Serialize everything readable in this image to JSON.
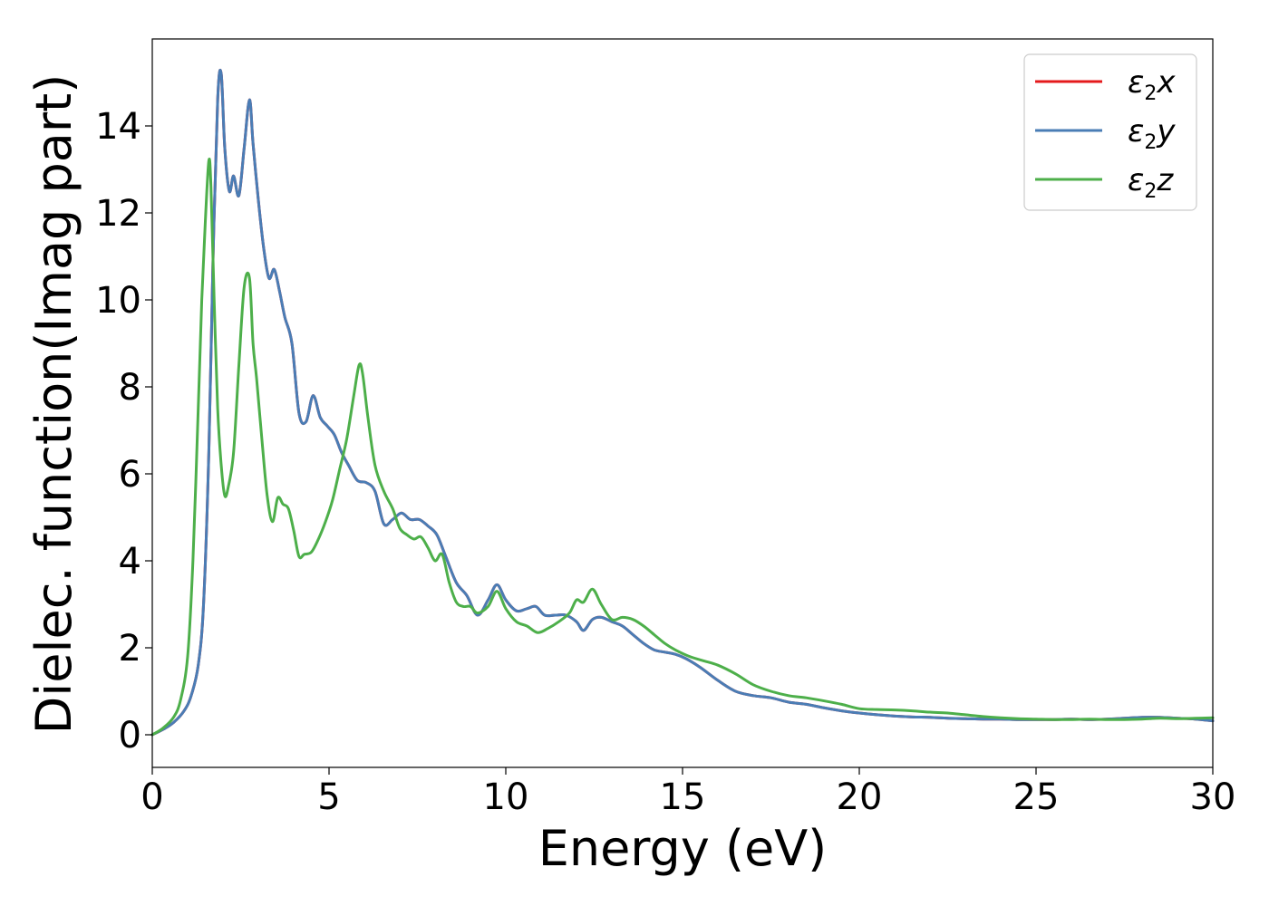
{
  "chart_data": {
    "type": "line",
    "xlabel": "Energy (eV)",
    "ylabel": "Dielec. function(Imag part)",
    "xlim": [
      0,
      30
    ],
    "ylim": [
      -0.75,
      16
    ],
    "xticks": [
      0,
      5,
      10,
      15,
      20,
      25,
      30
    ],
    "yticks": [
      0,
      2,
      4,
      6,
      8,
      10,
      12,
      14
    ],
    "grid": false,
    "legend_position": "top-right",
    "series": [
      {
        "name": "ε2x",
        "legend_base": "ε",
        "legend_sub": "2",
        "legend_suffix": "x",
        "color": "#e41a1c",
        "x": [
          0,
          0.3,
          0.6,
          0.9,
          1.1,
          1.3,
          1.45,
          1.6,
          1.72,
          1.85,
          1.95,
          2.05,
          2.18,
          2.3,
          2.45,
          2.6,
          2.75,
          2.85,
          3.0,
          3.15,
          3.3,
          3.45,
          3.6,
          3.75,
          3.95,
          4.15,
          4.35,
          4.55,
          4.75,
          4.95,
          5.15,
          5.35,
          5.55,
          5.8,
          6.05,
          6.3,
          6.55,
          6.8,
          7.05,
          7.3,
          7.55,
          7.8,
          8.05,
          8.3,
          8.6,
          8.9,
          9.2,
          9.5,
          9.75,
          10.0,
          10.3,
          10.6,
          10.85,
          11.1,
          11.4,
          11.7,
          12.0,
          12.2,
          12.45,
          12.7,
          13.0,
          13.3,
          13.6,
          13.9,
          14.2,
          14.5,
          14.8,
          15.1,
          15.5,
          16.0,
          16.5,
          17.0,
          17.5,
          18.0,
          18.5,
          19.0,
          19.5,
          20.0,
          20.5,
          21.0,
          21.5,
          22.0,
          22.5,
          23.0,
          23.5,
          24.0,
          24.5,
          25.0,
          25.5,
          26.0,
          26.5,
          27.0,
          27.5,
          28.0,
          28.5,
          29.0,
          29.5,
          30.0
        ],
        "y": [
          0.0,
          0.12,
          0.28,
          0.55,
          0.9,
          1.6,
          3.0,
          6.5,
          11.0,
          14.6,
          15.2,
          13.5,
          12.5,
          12.85,
          12.4,
          13.5,
          14.6,
          13.6,
          12.3,
          11.2,
          10.5,
          10.7,
          10.2,
          9.6,
          9.0,
          7.4,
          7.2,
          7.8,
          7.3,
          7.1,
          6.9,
          6.5,
          6.2,
          5.85,
          5.8,
          5.6,
          4.85,
          4.95,
          5.1,
          4.95,
          4.95,
          4.8,
          4.6,
          4.1,
          3.5,
          3.2,
          2.75,
          3.1,
          3.45,
          3.1,
          2.85,
          2.9,
          2.95,
          2.75,
          2.75,
          2.75,
          2.6,
          2.4,
          2.65,
          2.7,
          2.6,
          2.5,
          2.3,
          2.1,
          1.95,
          1.9,
          1.85,
          1.75,
          1.55,
          1.25,
          1.0,
          0.9,
          0.85,
          0.75,
          0.7,
          0.62,
          0.55,
          0.5,
          0.46,
          0.43,
          0.41,
          0.4,
          0.38,
          0.37,
          0.36,
          0.36,
          0.35,
          0.35,
          0.35,
          0.36,
          0.35,
          0.36,
          0.38,
          0.4,
          0.4,
          0.38,
          0.36,
          0.32
        ]
      },
      {
        "name": "ε2y",
        "legend_base": "ε",
        "legend_sub": "2",
        "legend_suffix": "y",
        "color": "#4a7db5",
        "x": [
          0,
          0.3,
          0.6,
          0.9,
          1.1,
          1.3,
          1.45,
          1.6,
          1.72,
          1.85,
          1.95,
          2.05,
          2.18,
          2.3,
          2.45,
          2.6,
          2.75,
          2.85,
          3.0,
          3.15,
          3.3,
          3.45,
          3.6,
          3.75,
          3.95,
          4.15,
          4.35,
          4.55,
          4.75,
          4.95,
          5.15,
          5.35,
          5.55,
          5.8,
          6.05,
          6.3,
          6.55,
          6.8,
          7.05,
          7.3,
          7.55,
          7.8,
          8.05,
          8.3,
          8.6,
          8.9,
          9.2,
          9.5,
          9.75,
          10.0,
          10.3,
          10.6,
          10.85,
          11.1,
          11.4,
          11.7,
          12.0,
          12.2,
          12.45,
          12.7,
          13.0,
          13.3,
          13.6,
          13.9,
          14.2,
          14.5,
          14.8,
          15.1,
          15.5,
          16.0,
          16.5,
          17.0,
          17.5,
          18.0,
          18.5,
          19.0,
          19.5,
          20.0,
          20.5,
          21.0,
          21.5,
          22.0,
          22.5,
          23.0,
          23.5,
          24.0,
          24.5,
          25.0,
          25.5,
          26.0,
          26.5,
          27.0,
          27.5,
          28.0,
          28.5,
          29.0,
          29.5,
          30.0
        ],
        "y": [
          0.0,
          0.12,
          0.28,
          0.55,
          0.9,
          1.6,
          3.0,
          6.5,
          11.0,
          14.6,
          15.2,
          13.5,
          12.5,
          12.85,
          12.4,
          13.5,
          14.6,
          13.6,
          12.3,
          11.2,
          10.5,
          10.7,
          10.2,
          9.6,
          9.0,
          7.4,
          7.2,
          7.8,
          7.3,
          7.1,
          6.9,
          6.5,
          6.2,
          5.85,
          5.8,
          5.6,
          4.85,
          4.95,
          5.1,
          4.95,
          4.95,
          4.8,
          4.6,
          4.1,
          3.5,
          3.2,
          2.75,
          3.1,
          3.45,
          3.1,
          2.85,
          2.9,
          2.95,
          2.75,
          2.75,
          2.75,
          2.6,
          2.4,
          2.65,
          2.7,
          2.6,
          2.5,
          2.3,
          2.1,
          1.95,
          1.9,
          1.85,
          1.75,
          1.55,
          1.25,
          1.0,
          0.9,
          0.85,
          0.75,
          0.7,
          0.62,
          0.55,
          0.5,
          0.46,
          0.43,
          0.41,
          0.4,
          0.38,
          0.37,
          0.36,
          0.36,
          0.35,
          0.35,
          0.35,
          0.36,
          0.35,
          0.36,
          0.38,
          0.4,
          0.4,
          0.38,
          0.36,
          0.32
        ]
      },
      {
        "name": "ε2z",
        "legend_base": "ε",
        "legend_sub": "2",
        "legend_suffix": "z",
        "color": "#4daf4a",
        "x": [
          0,
          0.3,
          0.6,
          0.8,
          1.0,
          1.15,
          1.3,
          1.4,
          1.5,
          1.6,
          1.66,
          1.75,
          1.85,
          1.95,
          2.05,
          2.15,
          2.3,
          2.45,
          2.6,
          2.75,
          2.85,
          2.95,
          3.1,
          3.25,
          3.4,
          3.55,
          3.7,
          3.85,
          4.0,
          4.15,
          4.3,
          4.5,
          4.7,
          4.9,
          5.1,
          5.3,
          5.5,
          5.7,
          5.85,
          5.95,
          6.1,
          6.3,
          6.55,
          6.8,
          7.0,
          7.2,
          7.4,
          7.6,
          7.8,
          8.0,
          8.2,
          8.4,
          8.6,
          8.8,
          9.0,
          9.2,
          9.5,
          9.75,
          10.0,
          10.3,
          10.6,
          10.9,
          11.2,
          11.5,
          11.8,
          12.0,
          12.2,
          12.45,
          12.7,
          13.0,
          13.3,
          13.6,
          13.9,
          14.2,
          14.5,
          14.8,
          15.2,
          15.6,
          16.0,
          16.5,
          17.0,
          17.5,
          18.0,
          18.5,
          19.0,
          19.5,
          20.0,
          20.5,
          21.0,
          21.5,
          22.0,
          22.5,
          23.0,
          23.5,
          24.0,
          24.5,
          25.0,
          25.5,
          26.0,
          26.5,
          27.0,
          27.5,
          28.0,
          28.5,
          29.0,
          29.5,
          30.0
        ],
        "y": [
          0.0,
          0.15,
          0.4,
          0.8,
          1.8,
          4.0,
          7.5,
          10.0,
          11.8,
          13.2,
          12.6,
          10.0,
          7.5,
          6.2,
          5.5,
          5.7,
          6.5,
          8.5,
          10.3,
          10.5,
          9.0,
          8.2,
          6.8,
          5.5,
          4.9,
          5.45,
          5.3,
          5.2,
          4.7,
          4.1,
          4.15,
          4.2,
          4.5,
          4.9,
          5.4,
          6.1,
          6.8,
          7.8,
          8.5,
          8.3,
          7.3,
          6.2,
          5.6,
          5.2,
          4.75,
          4.6,
          4.5,
          4.55,
          4.3,
          4.0,
          4.15,
          3.5,
          3.05,
          2.95,
          2.95,
          2.8,
          2.95,
          3.3,
          2.9,
          2.6,
          2.5,
          2.35,
          2.45,
          2.6,
          2.8,
          3.1,
          3.05,
          3.35,
          3.0,
          2.65,
          2.7,
          2.65,
          2.5,
          2.3,
          2.1,
          1.95,
          1.8,
          1.7,
          1.6,
          1.4,
          1.15,
          1.0,
          0.9,
          0.85,
          0.78,
          0.7,
          0.6,
          0.58,
          0.57,
          0.55,
          0.52,
          0.5,
          0.46,
          0.42,
          0.39,
          0.37,
          0.36,
          0.35,
          0.35,
          0.36,
          0.35,
          0.35,
          0.36,
          0.38,
          0.37,
          0.38,
          0.39
        ]
      }
    ]
  }
}
